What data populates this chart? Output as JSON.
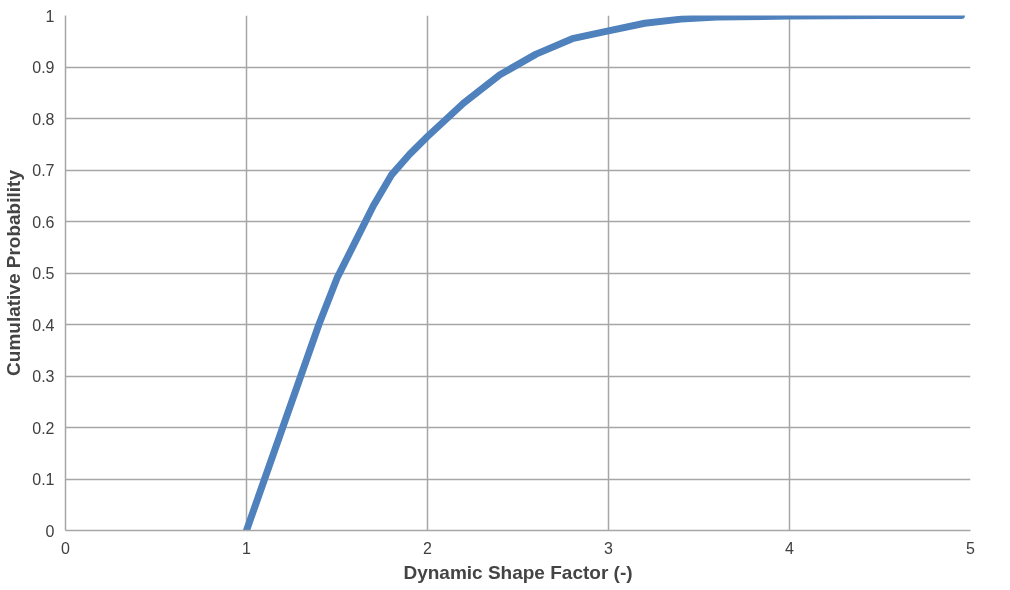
{
  "chart_data": {
    "type": "line",
    "xlabel": "Dynamic Shape Factor (-)",
    "ylabel": "Cumulative Probability",
    "xlim": [
      0,
      5
    ],
    "xticks": [
      0,
      1,
      2,
      3,
      4,
      5
    ],
    "ylim": [
      0,
      1
    ],
    "yticks": [
      0,
      0.1,
      0.2,
      0.3,
      0.4,
      0.5,
      0.6,
      0.7,
      0.8,
      0.9,
      1
    ],
    "grid": true,
    "marker": "none",
    "line_style": "solid",
    "series": [
      {
        "color": "#4f81bd",
        "x": [
          1.0,
          1.05,
          1.1,
          1.2,
          1.3,
          1.4,
          1.5,
          1.6,
          1.7,
          1.8,
          1.9,
          2.0,
          2.2,
          2.4,
          2.6,
          2.8,
          3.0,
          3.2,
          3.4,
          3.6,
          4.0,
          4.5,
          4.95
        ],
        "values": [
          0,
          0.05,
          0.1,
          0.2,
          0.3,
          0.4,
          0.49,
          0.56,
          0.63,
          0.69,
          0.73,
          0.765,
          0.83,
          0.885,
          0.925,
          0.955,
          0.97,
          0.985,
          0.993,
          0.997,
          0.999,
          1.0,
          1.0
        ]
      }
    ]
  }
}
